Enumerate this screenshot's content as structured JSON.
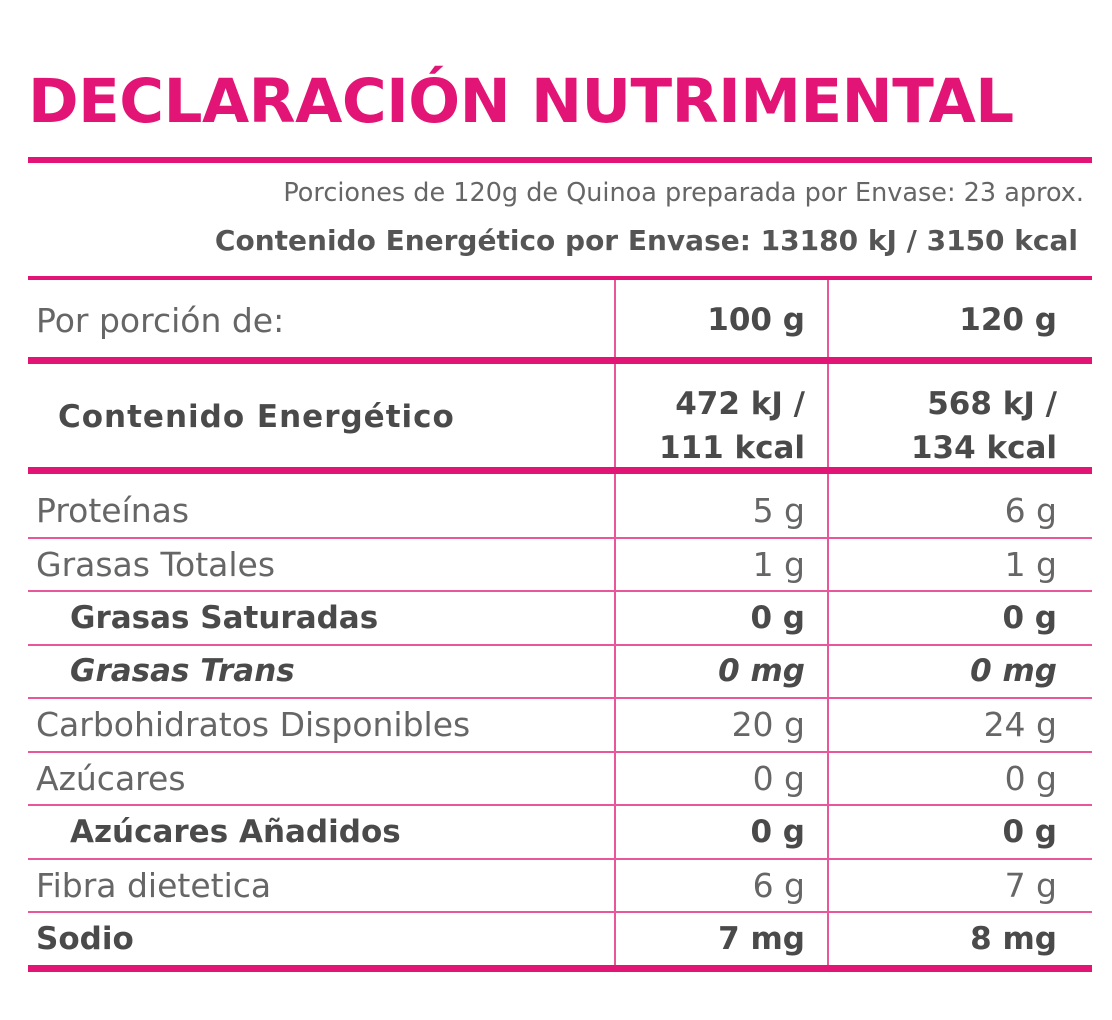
{
  "header": {
    "title": "DECLARACIÓN NUTRIMENTAL",
    "servings": "Porciones de 120g de Quinoa preparada por Envase: 23 aprox.",
    "energy_per_package": "Contenido Energético por Envase: 13180 kJ / 3150 kcal"
  },
  "table": {
    "header": [
      "Por porción de:",
      "100 g",
      "120 g"
    ],
    "energy": {
      "label": "Contenido Energético",
      "per_100": [
        "472 kJ /",
        "111 kcal"
      ],
      "per_120": [
        "568 kJ /",
        "134 kcal"
      ]
    },
    "rows": [
      [
        "Proteínas",
        "5 g",
        "6 g"
      ],
      [
        "Grasas Totales",
        "1 g",
        "1 g"
      ],
      [
        "Grasas Saturadas",
        "0 g",
        "0 g"
      ],
      [
        "Grasas Trans",
        "0 mg",
        "0 mg"
      ],
      [
        "Carbohidratos Disponibles",
        "20 g",
        "24 g"
      ],
      [
        "Azúcares",
        "0 g",
        "0 g"
      ],
      [
        "Azúcares Añadidos",
        "0 g",
        "0 g"
      ],
      [
        "Fibra dietetica",
        "6 g",
        "7 g"
      ],
      [
        "Sodio",
        "7 mg",
        "8 mg"
      ]
    ]
  }
}
